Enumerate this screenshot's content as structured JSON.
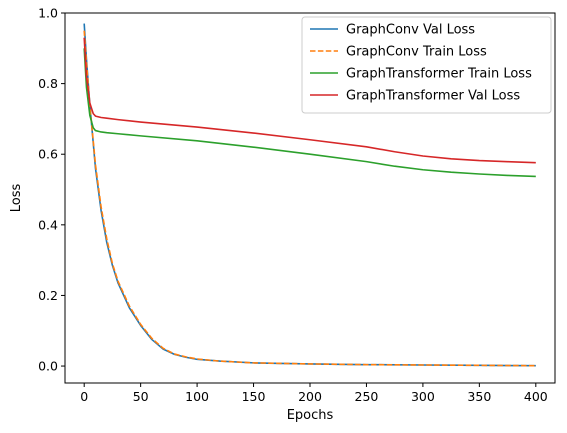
{
  "chart_data": {
    "type": "line",
    "xlabel": "Epochs",
    "ylabel": "Loss",
    "xlim": [
      -17,
      417
    ],
    "ylim": [
      -0.048,
      1.0
    ],
    "xticks": [
      0,
      50,
      100,
      150,
      200,
      250,
      300,
      350,
      400
    ],
    "yticks": [
      0.0,
      0.2,
      0.4,
      0.6,
      0.8,
      1.0
    ],
    "ytick_labels": [
      "0.0",
      "0.2",
      "0.4",
      "0.6",
      "0.8",
      "1.0"
    ],
    "grid": false,
    "legend_position": "top-right",
    "series": [
      {
        "name": "GraphConv Val Loss",
        "color": "#1f77b4",
        "dash": "solid",
        "x": [
          0,
          2,
          5,
          10,
          15,
          20,
          25,
          30,
          40,
          50,
          60,
          70,
          80,
          90,
          100,
          120,
          150,
          200,
          250,
          300,
          350,
          400
        ],
        "y": [
          0.97,
          0.87,
          0.74,
          0.56,
          0.44,
          0.35,
          0.285,
          0.235,
          0.165,
          0.115,
          0.075,
          0.048,
          0.033,
          0.025,
          0.019,
          0.014,
          0.009,
          0.006,
          0.004,
          0.003,
          0.002,
          0.001
        ]
      },
      {
        "name": "GraphConv Train Loss",
        "color": "#ff7f0e",
        "dash": "dashed",
        "x": [
          0,
          2,
          5,
          10,
          15,
          20,
          25,
          30,
          40,
          50,
          60,
          70,
          80,
          90,
          100,
          120,
          150,
          200,
          250,
          300,
          350,
          400
        ],
        "y": [
          0.95,
          0.86,
          0.74,
          0.57,
          0.45,
          0.36,
          0.29,
          0.24,
          0.17,
          0.118,
          0.078,
          0.05,
          0.034,
          0.026,
          0.02,
          0.014,
          0.009,
          0.006,
          0.004,
          0.003,
          0.002,
          0.001
        ]
      },
      {
        "name": "GraphTransformer Train Loss",
        "color": "#2ca02c",
        "dash": "solid",
        "x": [
          0,
          2,
          5,
          8,
          10,
          15,
          20,
          30,
          50,
          100,
          150,
          200,
          250,
          275,
          300,
          325,
          350,
          375,
          400
        ],
        "y": [
          0.9,
          0.79,
          0.71,
          0.675,
          0.667,
          0.663,
          0.661,
          0.658,
          0.652,
          0.638,
          0.62,
          0.6,
          0.579,
          0.566,
          0.556,
          0.549,
          0.544,
          0.54,
          0.537
        ]
      },
      {
        "name": "GraphTransformer Val Loss",
        "color": "#d62728",
        "dash": "solid",
        "x": [
          0,
          2,
          5,
          8,
          10,
          15,
          20,
          30,
          50,
          100,
          150,
          200,
          250,
          275,
          300,
          325,
          350,
          375,
          400
        ],
        "y": [
          0.93,
          0.82,
          0.745,
          0.715,
          0.708,
          0.704,
          0.702,
          0.698,
          0.691,
          0.677,
          0.66,
          0.641,
          0.621,
          0.607,
          0.595,
          0.587,
          0.582,
          0.579,
          0.576
        ]
      }
    ]
  }
}
